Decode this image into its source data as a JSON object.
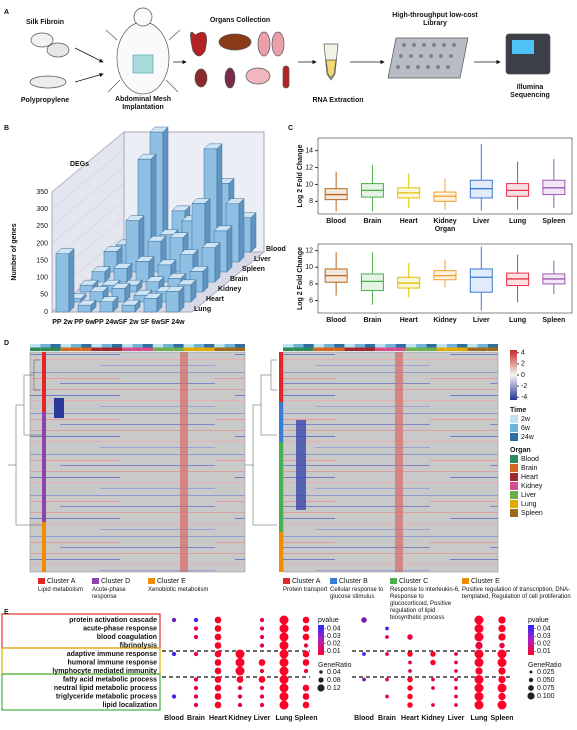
{
  "panel_labels": [
    "A",
    "B",
    "C",
    "D",
    "E"
  ],
  "workflow": {
    "silk": "Silk Fibroin",
    "pp": "Polypropylene",
    "implant": "Abdominal Mesh Implantation",
    "organs": "Organs Collection",
    "rna": "RNA Extraction",
    "library": "High-throughput low-cost Library",
    "seq": "Illumina Sequencing"
  },
  "chart_data": [
    {
      "type": "bar3d",
      "title": "DEGs",
      "y_label": "Number of genes",
      "categories": [
        "PP 2w",
        "PP 6w",
        "PP 24w",
        "SF 2w",
        "SF 6w",
        "SF 24w"
      ],
      "series": [
        {
          "name": "Lung",
          "values": [
            170,
            20,
            30,
            20,
            40,
            60
          ]
        },
        {
          "name": "Heart",
          "values": [
            10,
            30,
            40,
            20,
            30,
            50
          ]
        },
        {
          "name": "Kidney",
          "values": [
            20,
            20,
            20,
            30,
            40,
            60
          ]
        },
        {
          "name": "Brain",
          "values": [
            30,
            40,
            60,
            50,
            80,
            100
          ]
        },
        {
          "name": "Spleen",
          "values": [
            60,
            150,
            90,
            100,
            200,
            120
          ]
        },
        {
          "name": "Liver",
          "values": [
            50,
            300,
            80,
            120,
            330,
            170
          ]
        },
        {
          "name": "Blood",
          "values": [
            40,
            350,
            120,
            80,
            200,
            100
          ]
        }
      ],
      "ylim": [
        0,
        350
      ],
      "yticks": [
        0,
        50,
        100,
        150,
        200,
        250,
        300,
        350
      ],
      "color": "#8fbfe3"
    },
    {
      "type": "box",
      "y_label": "Log 2 Fold Change",
      "x_label": "Organ",
      "categories": [
        "Blood",
        "Brain",
        "Heart",
        "Kidney",
        "Liver",
        "Lung",
        "Spleen"
      ],
      "colors": [
        "#b5651d",
        "#4cae4c",
        "#e0c200",
        "#f0a030",
        "#3a7bd5",
        "#e8334a",
        "#9b59b6"
      ],
      "boxes": [
        {
          "low": 6.8,
          "q1": 8.2,
          "median": 8.8,
          "q3": 9.5,
          "high": 11.5
        },
        {
          "low": 6.8,
          "q1": 8.5,
          "median": 9.3,
          "q3": 10.1,
          "high": 12.3
        },
        {
          "low": 7.2,
          "q1": 8.4,
          "median": 9.0,
          "q3": 9.6,
          "high": 11.3
        },
        {
          "low": 7.0,
          "q1": 8.0,
          "median": 8.6,
          "q3": 9.1,
          "high": 10.7
        },
        {
          "low": 6.9,
          "q1": 8.4,
          "median": 9.5,
          "q3": 10.5,
          "high": 14.8
        },
        {
          "low": 7.0,
          "q1": 8.6,
          "median": 9.3,
          "q3": 10.1,
          "high": 12.7
        },
        {
          "low": 7.2,
          "q1": 8.8,
          "median": 9.6,
          "q3": 10.5,
          "high": 13.0
        }
      ],
      "ylim": [
        6.5,
        15.5
      ],
      "yticks": [
        8,
        10,
        12,
        14
      ]
    },
    {
      "type": "box",
      "y_label": "Log 2 Fold Change",
      "categories": [
        "Blood",
        "Brain",
        "Heart",
        "Kidney",
        "Liver",
        "Lung",
        "Spleen"
      ],
      "colors": [
        "#b5651d",
        "#4cae4c",
        "#e0c200",
        "#f0a030",
        "#3a7bd5",
        "#e8334a",
        "#9b59b6"
      ],
      "boxes": [
        {
          "low": 6.6,
          "q1": 8.2,
          "median": 9.0,
          "q3": 9.8,
          "high": 11.8
        },
        {
          "low": 5.5,
          "q1": 7.2,
          "median": 8.3,
          "q3": 9.2,
          "high": 11.8
        },
        {
          "low": 6.4,
          "q1": 7.5,
          "median": 8.1,
          "q3": 8.8,
          "high": 10.5
        },
        {
          "low": 7.6,
          "q1": 8.5,
          "median": 9.0,
          "q3": 9.6,
          "high": 10.9
        },
        {
          "low": 4.8,
          "q1": 7.0,
          "median": 8.8,
          "q3": 9.8,
          "high": 12.5
        },
        {
          "low": 5.8,
          "q1": 7.8,
          "median": 8.6,
          "q3": 9.3,
          "high": 11.5
        },
        {
          "low": 6.8,
          "q1": 8.0,
          "median": 8.6,
          "q3": 9.2,
          "high": 10.8
        }
      ],
      "ylim": [
        4.5,
        12.8
      ],
      "yticks": [
        6,
        8,
        10,
        12
      ]
    },
    {
      "type": "dot",
      "terms": [
        "protein activation cascade",
        "acute-phase response",
        "blood coagulation",
        "fibrinolysis",
        "adaptive immune response",
        "humoral immune response",
        "lymphocyte mediated immunity",
        "fatty acid metabolic process",
        "neutral lipid metabolic process",
        "triglyceride metabolic process",
        "lipid localization"
      ],
      "categories": [
        "Blood",
        "Brain",
        "Heart",
        "Kidney",
        "Liver",
        "Lung",
        "Spleen"
      ],
      "ratio": [
        [
          0.04,
          0.04,
          0.08,
          null,
          0.04,
          0.12,
          0.08
        ],
        [
          null,
          0.04,
          0.08,
          null,
          0.04,
          0.12,
          0.08
        ],
        [
          null,
          0.04,
          0.08,
          null,
          0.04,
          0.12,
          0.08
        ],
        [
          null,
          null,
          0.08,
          null,
          0.04,
          0.12,
          0.04
        ],
        [
          0.04,
          0.04,
          0.08,
          0.12,
          null,
          0.12,
          0.08
        ],
        [
          null,
          null,
          0.08,
          0.12,
          0.08,
          0.12,
          0.08
        ],
        [
          null,
          null,
          0.08,
          0.12,
          0.04,
          0.12,
          0.04
        ],
        [
          null,
          0.04,
          0.08,
          0.08,
          0.08,
          0.12,
          null
        ],
        [
          null,
          0.04,
          0.08,
          0.04,
          0.04,
          0.12,
          0.08
        ],
        [
          0.04,
          0.04,
          0.08,
          0.04,
          0.04,
          0.12,
          0.08
        ],
        [
          null,
          0.04,
          0.08,
          0.04,
          0.04,
          0.12,
          0.08
        ]
      ],
      "pvalue": [
        [
          0.03,
          0.04,
          0.005,
          null,
          0.01,
          0.005,
          0.005
        ],
        [
          null,
          0.01,
          0.005,
          null,
          0.01,
          0.005,
          0.005
        ],
        [
          null,
          0.01,
          0.005,
          null,
          0.01,
          0.005,
          0.005
        ],
        [
          null,
          null,
          0.005,
          null,
          0.01,
          0.005,
          0.01
        ],
        [
          0.04,
          0.01,
          0.005,
          0.005,
          null,
          0.005,
          0.005
        ],
        [
          null,
          null,
          0.005,
          0.005,
          0.005,
          0.005,
          0.005
        ],
        [
          null,
          null,
          0.005,
          0.005,
          0.01,
          0.005,
          0.01
        ],
        [
          null,
          0.01,
          0.005,
          0.005,
          0.005,
          0.005,
          null
        ],
        [
          null,
          0.01,
          0.005,
          0.01,
          0.01,
          0.005,
          0.005
        ],
        [
          0.04,
          0.01,
          0.005,
          0.01,
          0.01,
          0.005,
          0.005
        ],
        [
          null,
          0.01,
          0.005,
          0.01,
          0.01,
          0.005,
          0.005
        ]
      ],
      "color_title": "pvalue",
      "plim": [
        0.005,
        0.045
      ],
      "pticks": [
        0.04,
        0.03,
        0.02,
        0.01
      ],
      "size_title": "GeneRatio",
      "size_ticks": [
        0.04,
        0.08,
        0.12
      ]
    },
    {
      "type": "dot",
      "categories": [
        "Blood",
        "Brain",
        "Heart",
        "Kidney",
        "Liver",
        "Lung",
        "Spleen"
      ],
      "ratio": [
        [
          0.05,
          null,
          null,
          null,
          null,
          0.1,
          0.075
        ],
        [
          null,
          0.025,
          null,
          null,
          null,
          0.1,
          0.075
        ],
        [
          null,
          0.025,
          0.05,
          null,
          null,
          0.1,
          0.075
        ],
        [
          null,
          null,
          null,
          null,
          null,
          0.075,
          0.05
        ],
        [
          0.025,
          0.025,
          0.05,
          0.05,
          0.025,
          0.1,
          0.1
        ],
        [
          null,
          null,
          0.025,
          0.05,
          0.025,
          0.1,
          0.1
        ],
        [
          null,
          null,
          0.025,
          null,
          0.025,
          0.075,
          0.075
        ],
        [
          0.025,
          0.025,
          0.05,
          0.025,
          0.025,
          0.1,
          0.075
        ],
        [
          null,
          null,
          0.05,
          0.025,
          0.025,
          0.1,
          0.1
        ],
        [
          null,
          0.025,
          0.05,
          null,
          0.025,
          0.1,
          0.075
        ],
        [
          null,
          null,
          0.05,
          0.025,
          0.025,
          0.1,
          0.1
        ]
      ],
      "pvalue": [
        [
          0.03,
          null,
          null,
          null,
          null,
          0.005,
          0.005
        ],
        [
          null,
          0.04,
          null,
          null,
          null,
          0.005,
          0.005
        ],
        [
          null,
          0.01,
          0.01,
          null,
          null,
          0.005,
          0.005
        ],
        [
          null,
          null,
          null,
          null,
          null,
          0.01,
          0.01
        ],
        [
          0.04,
          0.01,
          0.005,
          0.005,
          0.01,
          0.005,
          0.005
        ],
        [
          null,
          null,
          0.01,
          0.005,
          0.01,
          0.005,
          0.005
        ],
        [
          null,
          null,
          0.01,
          null,
          0.01,
          0.005,
          0.005
        ],
        [
          0.03,
          0.01,
          0.005,
          0.01,
          0.01,
          0.005,
          0.005
        ],
        [
          null,
          null,
          0.005,
          0.01,
          0.01,
          0.005,
          0.005
        ],
        [
          null,
          0.01,
          0.005,
          null,
          0.01,
          0.005,
          0.005
        ],
        [
          null,
          null,
          0.005,
          0.01,
          0.01,
          0.005,
          0.005
        ]
      ],
      "color_title": "pvalue",
      "plim": [
        0.005,
        0.045
      ],
      "pticks": [
        0.04,
        0.03,
        0.02,
        0.01
      ],
      "size_title": "GeneRatio",
      "size_ticks": [
        0.025,
        {
          "value": 0.05,
          "label": "0.050"
        },
        0.075,
        {
          "value": 0.1,
          "label": "0.100"
        }
      ]
    }
  ],
  "heatmap": {
    "colorbar_ticks": [
      4,
      2,
      0,
      -2,
      -4
    ],
    "colorbar_lim": [
      -4.5,
      4.5
    ],
    "time_title": "Time",
    "time": [
      {
        "name": "2w",
        "color": "#bfe3f2"
      },
      {
        "name": "6w",
        "color": "#6fb3d8"
      },
      {
        "name": "24w",
        "color": "#2f6f9f"
      }
    ],
    "organ_title": "Organ",
    "organs": [
      {
        "name": "Blood",
        "color": "#2e8b57"
      },
      {
        "name": "Brain",
        "color": "#d2691e"
      },
      {
        "name": "Heart",
        "color": "#a0282d"
      },
      {
        "name": "Kidney",
        "color": "#d64c8c"
      },
      {
        "name": "Liver",
        "color": "#6ab04c"
      },
      {
        "name": "Lung",
        "color": "#e0a800"
      },
      {
        "name": "Spleen",
        "color": "#9c6b1e"
      }
    ],
    "left_clusters": [
      {
        "name": "Cluster A",
        "desc": "Lipid metabolism",
        "color": "#e02828"
      },
      {
        "name": "Cluster D",
        "desc": "Acute-phase response",
        "color": "#8e44ad"
      },
      {
        "name": "Cluster E",
        "desc": "Xenobiotic metabolism",
        "color": "#f08c00"
      }
    ],
    "right_clusters": [
      {
        "name": "Cluster A",
        "desc": "Protein transport",
        "color": "#e02828"
      },
      {
        "name": "Cluster B",
        "desc": "Cellular response to glucose stimulus",
        "color": "#3a7bd5"
      },
      {
        "name": "Cluster C",
        "desc": "Response to interleukin-6, Response to glucocorticoid, Positive regulation of lipid biosynthetic process",
        "color": "#4cae4c"
      },
      {
        "name": "Cluster E",
        "desc": "Positive regulation of transcription, DNA-templated, Regulation of cell proliferation",
        "color": "#f08c00"
      }
    ]
  }
}
